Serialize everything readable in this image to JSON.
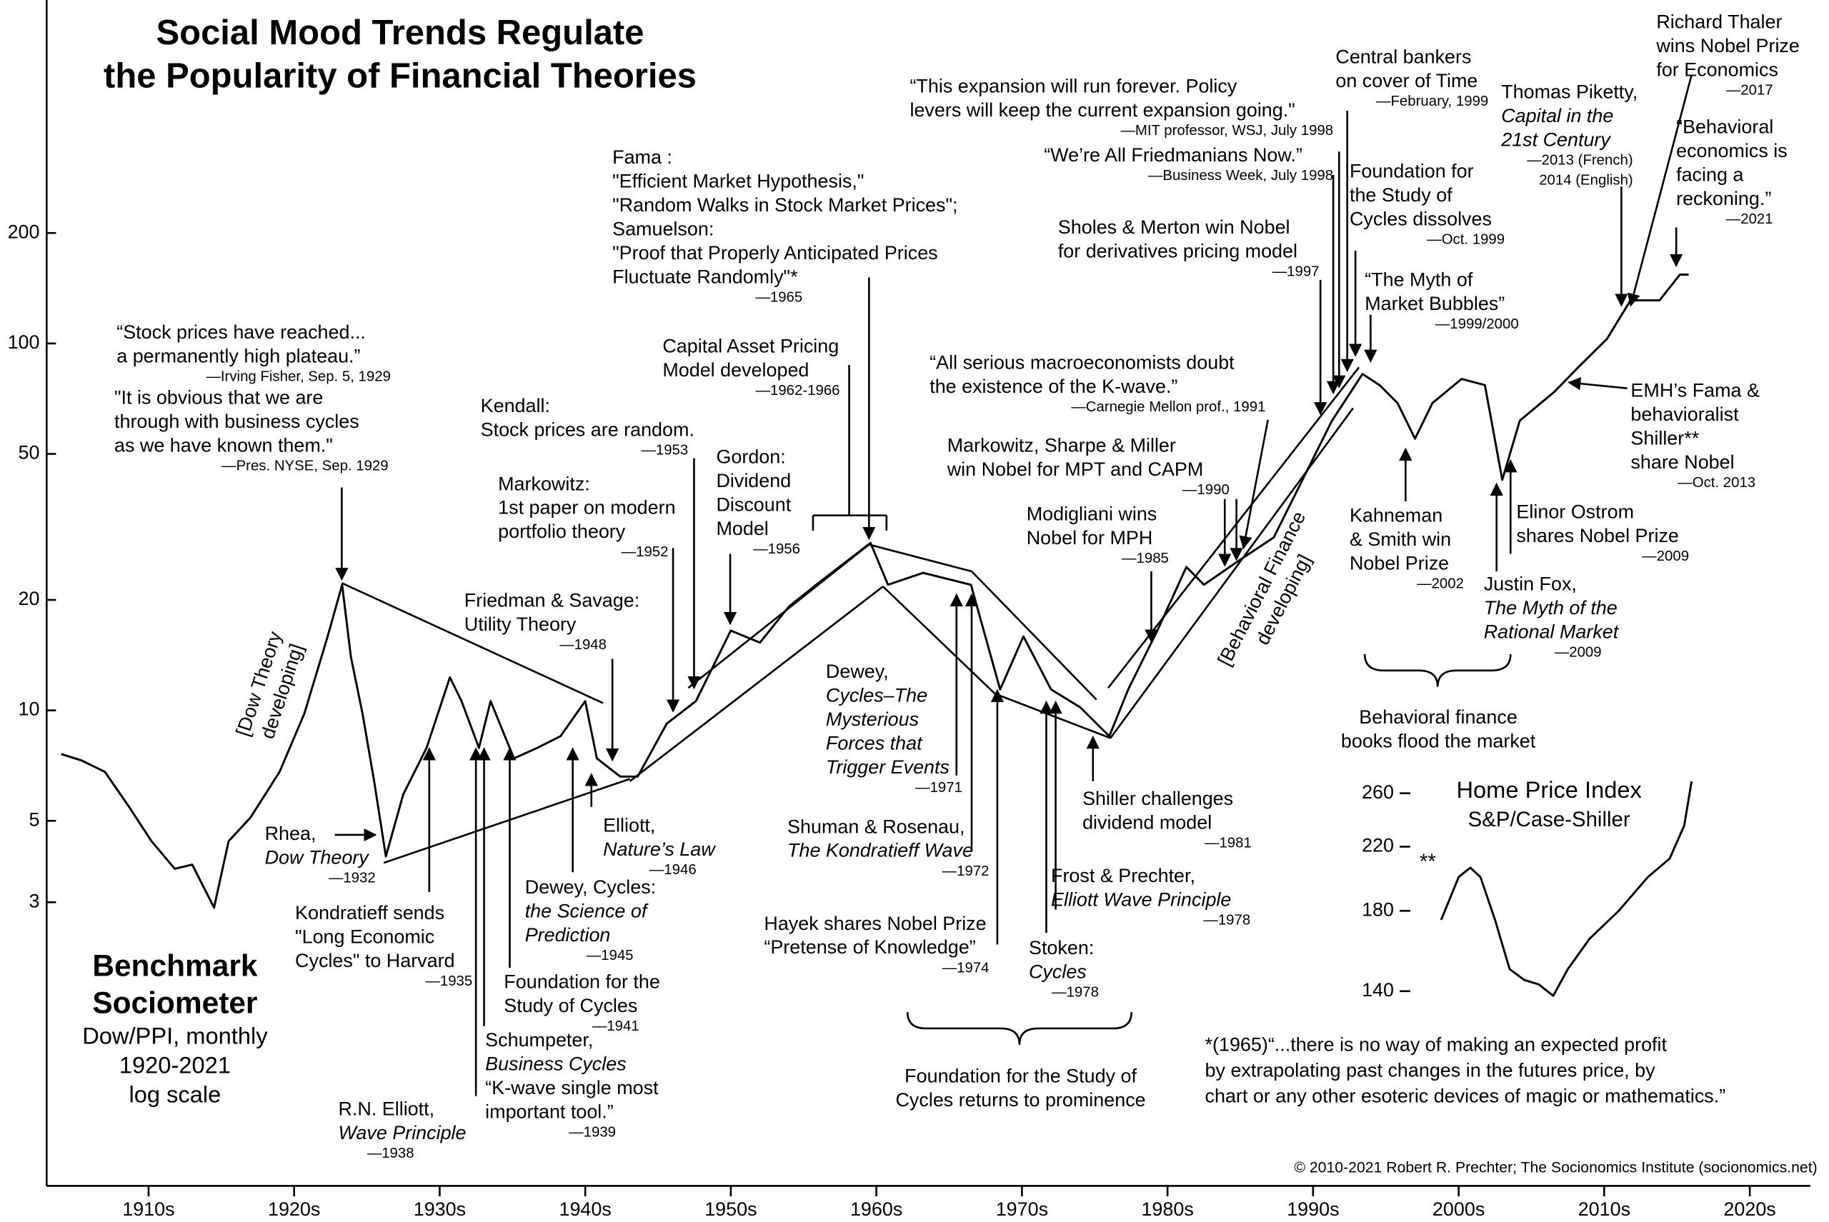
{
  "chart_data": [
    {
      "type": "line",
      "title": [
        "Social Mood Trends Regulate",
        "the Popularity of Financial Theories"
      ],
      "label": [
        "Benchmark",
        "Sociometer"
      ],
      "caption": [
        "Dow/PPI, monthly",
        "1920-2021",
        "log scale"
      ],
      "log_scale": true,
      "color": "#000000",
      "xlim": [
        1908,
        2029
      ],
      "ylim": [
        0.506,
        863
      ],
      "xticks": [
        {
          "value": 1915,
          "label": "1910s"
        },
        {
          "value": 1925,
          "label": "1920s"
        },
        {
          "value": 1935,
          "label": "1930s"
        },
        {
          "value": 1945,
          "label": "1940s"
        },
        {
          "value": 1955,
          "label": "1950s"
        },
        {
          "value": 1965,
          "label": "1960s"
        },
        {
          "value": 1975,
          "label": "1970s"
        },
        {
          "value": 1985,
          "label": "1980s"
        },
        {
          "value": 1995,
          "label": "1990s"
        },
        {
          "value": 2005,
          "label": "2000s"
        },
        {
          "value": 2015,
          "label": "2010s"
        },
        {
          "value": 2025,
          "label": "2020s"
        }
      ],
      "yticks": [
        3,
        5,
        10,
        20,
        50,
        100,
        200
      ],
      "x": [
        1909,
        1910.4,
        1912,
        1913.6,
        1915.2,
        1916.8,
        1918,
        1919.5,
        1920.5,
        1922,
        1924,
        1925.7,
        1927.3,
        1928.3,
        1928.9,
        1929.7,
        1930.5,
        1931.3,
        1932.5,
        1934.1,
        1935.7,
        1936.5,
        1937.7,
        1938.5,
        1940.1,
        1941.7,
        1943.3,
        1945,
        1945.8,
        1947.4,
        1948.6,
        1950.6,
        1952.6,
        1955,
        1957,
        1959,
        1961,
        1964.6,
        1965.8,
        1968.2,
        1971.5,
        1973.5,
        1975.1,
        1977,
        1979,
        1981,
        1982.3,
        1984.3,
        1986.3,
        1987.5,
        1989.9,
        1992.3,
        1993.9,
        1996.3,
        1998.4,
        1999.6,
        2000.8,
        2002,
        2003.2,
        2005.2,
        2006.8,
        2008,
        2009.2,
        2011.6,
        2013.2,
        2015.2,
        2016.8,
        2018.8,
        2020.2,
        2020.8
      ],
      "values": [
        7.6,
        7.3,
        6.8,
        5.5,
        4.4,
        3.7,
        3.8,
        2.9,
        4.4,
        5.1,
        6.8,
        9.8,
        15.9,
        22,
        14,
        9.8,
        6.4,
        4.0,
        5.9,
        7.9,
        12.3,
        10.6,
        7.9,
        10.6,
        7.4,
        7.9,
        8.5,
        10.6,
        7.4,
        6.6,
        6.6,
        9.2,
        10.6,
        16.5,
        15.3,
        19.2,
        22.2,
        28.6,
        22,
        23.7,
        22,
        11.4,
        15.9,
        11.4,
        10.2,
        8.5,
        11.4,
        16.5,
        24.6,
        22,
        25.6,
        29.6,
        39.7,
        61.6,
        82.6,
        76.8,
        68.8,
        55,
        68.8,
        80,
        77,
        42.5,
        61.6,
        74,
        86,
        103,
        131,
        131,
        154,
        154
      ],
      "annotations": [
        [
          "“Stock prices have reached...",
          "a permanently high plateau.”",
          "—Irving Fisher, Sep. 5, 1929"
        ],
        [
          "\"It is obvious that we are",
          "through with business cycles",
          "as we have known them.\"",
          "—Pres. NYSE, Sep. 1929"
        ],
        [
          "[Dow Theory",
          "developing]"
        ],
        [
          "Rhea,",
          "Dow Theory",
          "—1932"
        ],
        [
          "Kondratieff sends",
          "\"Long Economic",
          "Cycles\" to Harvard",
          "—1935"
        ],
        [
          "R.N. Elliott,",
          "Wave Principle",
          "—1938"
        ],
        [
          "Schumpeter,",
          "Business Cycles",
          "“K-wave single most",
          "important tool.”",
          "—1939"
        ],
        [
          "Foundation for the",
          "Study of Cycles",
          "—1941"
        ],
        [
          "Dewey, Cycles:",
          "the Science of",
          "Prediction",
          "—1945"
        ],
        [
          "Elliott,",
          "Nature’s Law",
          "—1946"
        ],
        [
          "Friedman & Savage:",
          "Utility Theory",
          "—1948"
        ],
        [
          "Markowitz:",
          "1st paper on modern",
          "portfolio theory",
          "—1952"
        ],
        [
          "Kendall:",
          "Stock prices are random.",
          "—1953"
        ],
        [
          "Capital Asset Pricing",
          "Model developed",
          "—1962-1966"
        ],
        [
          "Gordon:",
          "Dividend",
          "Discount",
          "Model",
          "—1956"
        ],
        [
          "Fama :",
          "\"Efficient Market Hypothesis,\"",
          "\"Random Walks in Stock Market Prices\";",
          "Samuelson:",
          "\"Proof that Properly Anticipated Prices",
          "Fluctuate Randomly\"*",
          "—1965"
        ],
        [
          "Dewey,",
          "Cycles–The",
          "Mysterious",
          "Forces that",
          "Trigger Events",
          "—1971"
        ],
        [
          "Shuman & Rosenau,",
          "The Kondratieff Wave",
          "—1972"
        ],
        [
          "Hayek shares Nobel Prize",
          "“Pretense of Knowledge”",
          "—1974"
        ],
        [
          "Stoken:",
          "Cycles",
          "—1978"
        ],
        [
          "Frost & Prechter,",
          "Elliott Wave Principle",
          "—1978"
        ],
        [
          "Shiller challenges",
          "dividend model",
          "—1981"
        ],
        [
          "Foundation for the Study of",
          "Cycles returns to prominence"
        ],
        [
          "Modigliani wins",
          "Nobel for MPH",
          "—1985"
        ],
        [
          "Markowitz, Sharpe & Miller",
          "win Nobel for MPT and CAPM",
          "—1990"
        ],
        [
          "“All serious macroeconomists doubt",
          "the existence of the K-wave.”",
          "—Carnegie Mellon prof., 1991"
        ],
        [
          "Sholes & Merton win Nobel",
          "for derivatives pricing model",
          "—1997"
        ],
        [
          "“We’re All Friedmanians Now.”",
          "—Business Week, July 1998"
        ],
        [
          "“This expansion will run forever. Policy",
          "levers will keep the current expansion going.\"",
          "—MIT professor, WSJ, July 1998"
        ],
        [
          "Central bankers",
          "on cover of Time",
          "—February, 1999"
        ],
        [
          "Foundation for",
          "the Study of",
          "Cycles dissolves",
          "—Oct. 1999"
        ],
        [
          "“The Myth of",
          "Market Bubbles”",
          "—1999/2000"
        ],
        [
          "[Behavioral Finance",
          "developing]"
        ],
        [
          "Kahneman",
          "& Smith win",
          "Nobel Prize",
          "—2002"
        ],
        [
          "Justin Fox,",
          "The Myth of the",
          "Rational Market",
          "—2009"
        ],
        [
          "Elinor Ostrom",
          "shares Nobel Prize",
          "—2009"
        ],
        [
          "Behavioral finance",
          "books flood the market"
        ],
        [
          "EMH’s Fama &",
          "behavioralist",
          "Shiller**",
          "share Nobel",
          "—Oct. 2013"
        ],
        [
          "Thomas Piketty,",
          "Capital in the",
          "21st Century",
          "—2013 (French)",
          "2014 (English)"
        ],
        [
          "Richard Thaler",
          "wins Nobel Prize",
          "for Economics",
          "—2017"
        ],
        [
          "“Behavioral",
          "economics is",
          "facing a",
          "reckoning.”",
          "—2021"
        ]
      ],
      "footnote": [
        "*(1965)“...there is no way of making an expected profit",
        "by extrapolating past changes in the futures price, by",
        "chart or any other esoteric devices of magic or mathematics.”"
      ],
      "credit": "© 2010-2021 Robert R. Prechter; The Socionomics Institute (socionomics.net)"
    },
    {
      "type": "line",
      "title": "Home Price Index",
      "subtitle": "S&P/Case-Shiller",
      "annotation": "**",
      "log_scale": true,
      "color": "#000000",
      "xlim": [
        1908,
        2029
      ],
      "ylim": [
        135,
        280
      ],
      "yticks": [
        140,
        180,
        220,
        260
      ],
      "x": [
        2003.8,
        2005,
        2005.8,
        2006.5,
        2007.5,
        2008.5,
        2009.5,
        2010.5,
        2011.5,
        2012.5,
        2014,
        2016,
        2018,
        2019.5,
        2020.5,
        2021
      ],
      "values": [
        175,
        200,
        206,
        200,
        175,
        150,
        145,
        143,
        138,
        150,
        165,
        180,
        200,
        212,
        235,
        270
      ]
    }
  ]
}
